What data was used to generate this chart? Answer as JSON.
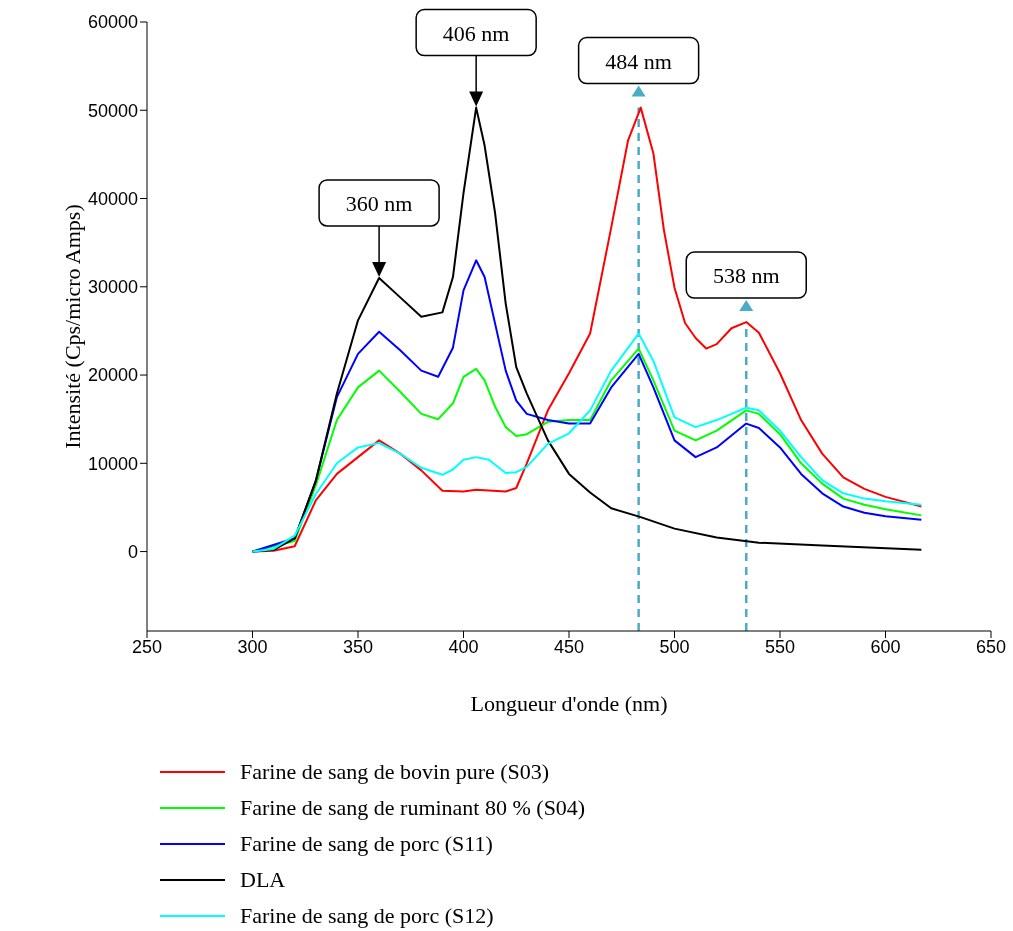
{
  "chart_data": {
    "type": "line",
    "xlabel": "Longueur d'onde (nm)",
    "ylabel": "Intensité (Cps/micro Amps)",
    "xlim": [
      250,
      650
    ],
    "xticks": [
      250,
      300,
      350,
      400,
      450,
      500,
      550,
      600,
      650
    ],
    "ylim": [
      -9000,
      60000
    ],
    "yticks": [
      0,
      10000,
      20000,
      30000,
      40000,
      50000,
      60000
    ],
    "grid": false,
    "legend": "bottom",
    "marker": "none",
    "line_style": "solid",
    "series": [
      {
        "name": "Farine de sang de bovin pure (S03)",
        "color": "#ff0000",
        "x": [
          300,
          310,
          320,
          330,
          340,
          350,
          360,
          370,
          380,
          390,
          400,
          406,
          420,
          425,
          430,
          440,
          450,
          460,
          470,
          478,
          484,
          490,
          495,
          500,
          505,
          510,
          515,
          520,
          527,
          534,
          540,
          550,
          560,
          570,
          580,
          590,
          600,
          617
        ],
        "values": [
          0,
          100,
          600,
          5800,
          8800,
          10700,
          12600,
          11100,
          9200,
          6900,
          6800,
          7000,
          6800,
          7200,
          10000,
          16000,
          20200,
          24700,
          36700,
          46600,
          50300,
          45100,
          36400,
          29900,
          25900,
          24200,
          23000,
          23500,
          25300,
          26000,
          24800,
          20200,
          14900,
          11100,
          8400,
          7100,
          6200,
          5100
        ]
      },
      {
        "name": "Farine de sang de ruminant 80 % (S04)",
        "color": "#00ff00",
        "x": [
          300,
          320,
          330,
          340,
          350,
          360,
          370,
          380,
          388,
          395,
          400,
          406,
          410,
          415,
          420,
          425,
          430,
          440,
          450,
          460,
          470,
          483,
          490,
          500,
          510,
          520,
          534,
          540,
          550,
          560,
          570,
          580,
          590,
          600,
          617
        ],
        "values": [
          0,
          1200,
          7500,
          14900,
          18600,
          20500,
          18100,
          15600,
          15000,
          16800,
          19800,
          20700,
          19400,
          16400,
          14100,
          13100,
          13300,
          14700,
          14900,
          14900,
          19400,
          23000,
          19400,
          13700,
          12600,
          13700,
          16000,
          15600,
          13300,
          10000,
          7700,
          6000,
          5300,
          4800,
          4100
        ]
      },
      {
        "name": "Farine de sang de porc (S11)",
        "color": "#0000ff",
        "x": [
          300,
          320,
          330,
          340,
          350,
          360,
          370,
          380,
          388,
          395,
          400,
          406,
          410,
          415,
          420,
          425,
          430,
          440,
          450,
          460,
          470,
          483,
          490,
          500,
          510,
          520,
          534,
          540,
          550,
          560,
          570,
          580,
          590,
          600,
          617
        ],
        "values": [
          0,
          1500,
          8000,
          17500,
          22400,
          24900,
          22800,
          20500,
          19800,
          23100,
          29600,
          33000,
          31100,
          25800,
          20500,
          17100,
          15600,
          14900,
          14500,
          14500,
          18600,
          22400,
          18600,
          12600,
          10700,
          11800,
          14500,
          14000,
          11800,
          8800,
          6600,
          5100,
          4400,
          4000,
          3600
        ]
      },
      {
        "name": "DLA",
        "color": "#000000",
        "x": [
          300,
          310,
          320,
          330,
          340,
          350,
          360,
          370,
          380,
          390,
          395,
          400,
          406,
          410,
          415,
          420,
          425,
          430,
          440,
          450,
          460,
          470,
          484,
          500,
          520,
          540,
          570,
          617
        ],
        "values": [
          0,
          200,
          1500,
          8000,
          17900,
          26200,
          31000,
          28800,
          26600,
          27100,
          31100,
          40600,
          50300,
          46000,
          38300,
          28100,
          20900,
          17900,
          12600,
          8800,
          6700,
          4900,
          3900,
          2600,
          1600,
          1000,
          700,
          200
        ]
      },
      {
        "name": "Farine de sang de porc (S12)",
        "color": "#00ffff",
        "x": [
          300,
          310,
          320,
          330,
          340,
          350,
          360,
          370,
          380,
          390,
          395,
          400,
          406,
          412,
          420,
          425,
          430,
          440,
          450,
          460,
          470,
          483,
          490,
          500,
          510,
          520,
          534,
          540,
          550,
          560,
          570,
          580,
          590,
          600,
          617
        ],
        "values": [
          0,
          300,
          1800,
          6500,
          10000,
          11800,
          12300,
          11100,
          9500,
          8700,
          9300,
          10400,
          10700,
          10400,
          8900,
          9000,
          9600,
          12200,
          13400,
          16000,
          20500,
          24700,
          21600,
          15200,
          14100,
          14900,
          16300,
          16000,
          13700,
          10700,
          8100,
          6600,
          6000,
          5700,
          5300
        ]
      }
    ],
    "ref_lines": [
      {
        "axis": "x",
        "value": 483,
        "color": "#4bacc6",
        "line_style": "dashed"
      },
      {
        "axis": "x",
        "value": 534,
        "color": "#4bacc6",
        "line_style": "dashed"
      }
    ],
    "annotations": [
      {
        "text": "360 nm",
        "x": 360,
        "y": 31000
      },
      {
        "text": "406 nm",
        "x": 406,
        "y": 50300
      },
      {
        "text": "484 nm",
        "x": 483,
        "y": 50300
      },
      {
        "text": "538 nm",
        "x": 534,
        "y": 26000
      }
    ]
  }
}
